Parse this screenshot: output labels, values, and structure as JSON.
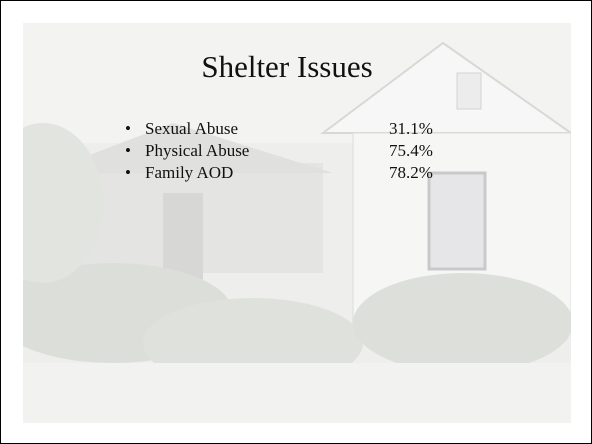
{
  "title": "Shelter Issues",
  "items": [
    {
      "label": "Sexual Abuse",
      "value": "31.1%"
    },
    {
      "label": "Physical Abuse",
      "value": "75.4%"
    },
    {
      "label": "Family AOD",
      "value": "78.2%"
    }
  ]
}
